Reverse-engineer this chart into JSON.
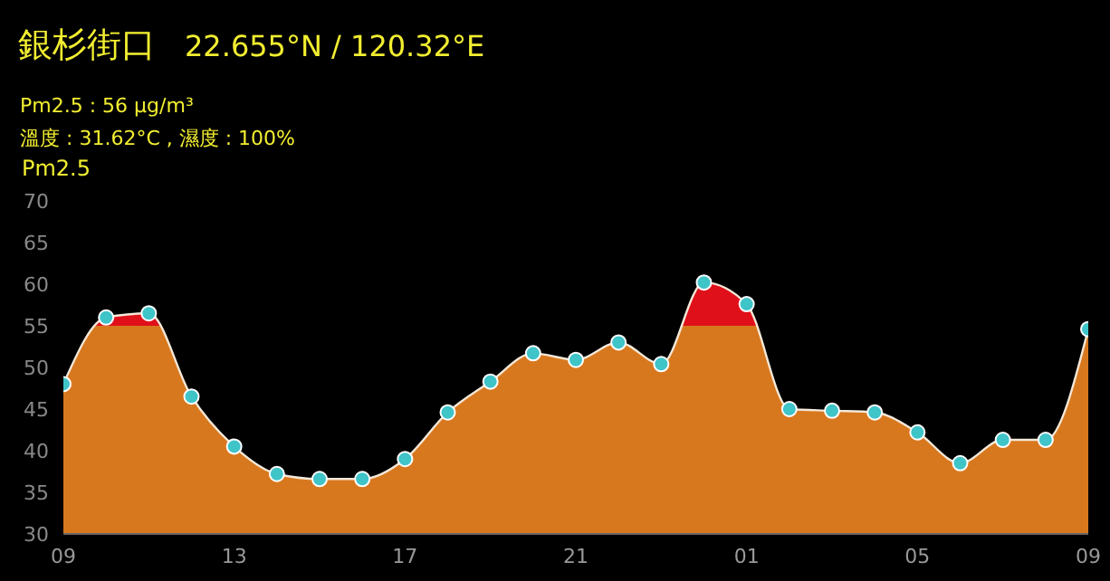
{
  "chart_data": {
    "type": "area",
    "title": "銀杉街口",
    "subtitle": "22.655°N / 120.32°E",
    "ylabel": "Pm2.5",
    "annotations": [
      "Pm2.5 : 56 μg/m³",
      "溫度 : 31.62°C , 濕度 : 100%"
    ],
    "categories": [
      "09",
      null,
      null,
      null,
      "13",
      null,
      null,
      null,
      "17",
      null,
      null,
      null,
      "21",
      null,
      null,
      null,
      "01",
      null,
      null,
      null,
      "05",
      null,
      null,
      null,
      "09"
    ],
    "series": [
      {
        "color": "#d8781e",
        "values": [
          48,
          56,
          56.5,
          46.5,
          40.5,
          37.2,
          36.6,
          36.6,
          39,
          44.6,
          48.3,
          51.7,
          50.9,
          53,
          50.4,
          60.2,
          57.6,
          45,
          44.8,
          44.6,
          42.2,
          38.5,
          41.3,
          41.3,
          54.6
        ]
      }
    ],
    "bands": [
      {
        "axis": "y",
        "from": 55,
        "to": 70,
        "color": "#e0101a"
      }
    ],
    "ylim": [
      30,
      70
    ],
    "yticks": [
      30,
      35,
      40,
      45,
      50,
      55,
      60,
      65,
      70
    ],
    "marker": "circle",
    "grid": false,
    "legend": false
  }
}
